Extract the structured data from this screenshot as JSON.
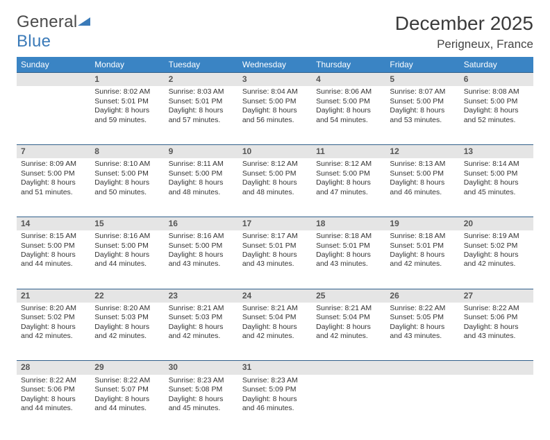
{
  "logo": {
    "text1": "General",
    "text2": "Blue"
  },
  "title": "December 2025",
  "location": "Perigneux, France",
  "colors": {
    "header_bg": "#3a84c4",
    "header_text": "#ffffff",
    "daynum_bg": "#e5e5e5",
    "border": "#2f5e8a",
    "logo_gray": "#4a4a4a",
    "logo_blue": "#3a7ab8"
  },
  "weekdays": [
    "Sunday",
    "Monday",
    "Tuesday",
    "Wednesday",
    "Thursday",
    "Friday",
    "Saturday"
  ],
  "weeks": [
    {
      "nums": [
        "",
        "1",
        "2",
        "3",
        "4",
        "5",
        "6"
      ],
      "cells": [
        "",
        "Sunrise: 8:02 AM\nSunset: 5:01 PM\nDaylight: 8 hours and 59 minutes.",
        "Sunrise: 8:03 AM\nSunset: 5:01 PM\nDaylight: 8 hours and 57 minutes.",
        "Sunrise: 8:04 AM\nSunset: 5:00 PM\nDaylight: 8 hours and 56 minutes.",
        "Sunrise: 8:06 AM\nSunset: 5:00 PM\nDaylight: 8 hours and 54 minutes.",
        "Sunrise: 8:07 AM\nSunset: 5:00 PM\nDaylight: 8 hours and 53 minutes.",
        "Sunrise: 8:08 AM\nSunset: 5:00 PM\nDaylight: 8 hours and 52 minutes."
      ]
    },
    {
      "nums": [
        "7",
        "8",
        "9",
        "10",
        "11",
        "12",
        "13"
      ],
      "cells": [
        "Sunrise: 8:09 AM\nSunset: 5:00 PM\nDaylight: 8 hours and 51 minutes.",
        "Sunrise: 8:10 AM\nSunset: 5:00 PM\nDaylight: 8 hours and 50 minutes.",
        "Sunrise: 8:11 AM\nSunset: 5:00 PM\nDaylight: 8 hours and 48 minutes.",
        "Sunrise: 8:12 AM\nSunset: 5:00 PM\nDaylight: 8 hours and 48 minutes.",
        "Sunrise: 8:12 AM\nSunset: 5:00 PM\nDaylight: 8 hours and 47 minutes.",
        "Sunrise: 8:13 AM\nSunset: 5:00 PM\nDaylight: 8 hours and 46 minutes.",
        "Sunrise: 8:14 AM\nSunset: 5:00 PM\nDaylight: 8 hours and 45 minutes."
      ]
    },
    {
      "nums": [
        "14",
        "15",
        "16",
        "17",
        "18",
        "19",
        "20"
      ],
      "cells": [
        "Sunrise: 8:15 AM\nSunset: 5:00 PM\nDaylight: 8 hours and 44 minutes.",
        "Sunrise: 8:16 AM\nSunset: 5:00 PM\nDaylight: 8 hours and 44 minutes.",
        "Sunrise: 8:16 AM\nSunset: 5:00 PM\nDaylight: 8 hours and 43 minutes.",
        "Sunrise: 8:17 AM\nSunset: 5:01 PM\nDaylight: 8 hours and 43 minutes.",
        "Sunrise: 8:18 AM\nSunset: 5:01 PM\nDaylight: 8 hours and 43 minutes.",
        "Sunrise: 8:18 AM\nSunset: 5:01 PM\nDaylight: 8 hours and 42 minutes.",
        "Sunrise: 8:19 AM\nSunset: 5:02 PM\nDaylight: 8 hours and 42 minutes."
      ]
    },
    {
      "nums": [
        "21",
        "22",
        "23",
        "24",
        "25",
        "26",
        "27"
      ],
      "cells": [
        "Sunrise: 8:20 AM\nSunset: 5:02 PM\nDaylight: 8 hours and 42 minutes.",
        "Sunrise: 8:20 AM\nSunset: 5:03 PM\nDaylight: 8 hours and 42 minutes.",
        "Sunrise: 8:21 AM\nSunset: 5:03 PM\nDaylight: 8 hours and 42 minutes.",
        "Sunrise: 8:21 AM\nSunset: 5:04 PM\nDaylight: 8 hours and 42 minutes.",
        "Sunrise: 8:21 AM\nSunset: 5:04 PM\nDaylight: 8 hours and 42 minutes.",
        "Sunrise: 8:22 AM\nSunset: 5:05 PM\nDaylight: 8 hours and 43 minutes.",
        "Sunrise: 8:22 AM\nSunset: 5:06 PM\nDaylight: 8 hours and 43 minutes."
      ]
    },
    {
      "nums": [
        "28",
        "29",
        "30",
        "31",
        "",
        "",
        ""
      ],
      "cells": [
        "Sunrise: 8:22 AM\nSunset: 5:06 PM\nDaylight: 8 hours and 44 minutes.",
        "Sunrise: 8:22 AM\nSunset: 5:07 PM\nDaylight: 8 hours and 44 minutes.",
        "Sunrise: 8:23 AM\nSunset: 5:08 PM\nDaylight: 8 hours and 45 minutes.",
        "Sunrise: 8:23 AM\nSunset: 5:09 PM\nDaylight: 8 hours and 46 minutes.",
        "",
        "",
        ""
      ]
    }
  ]
}
